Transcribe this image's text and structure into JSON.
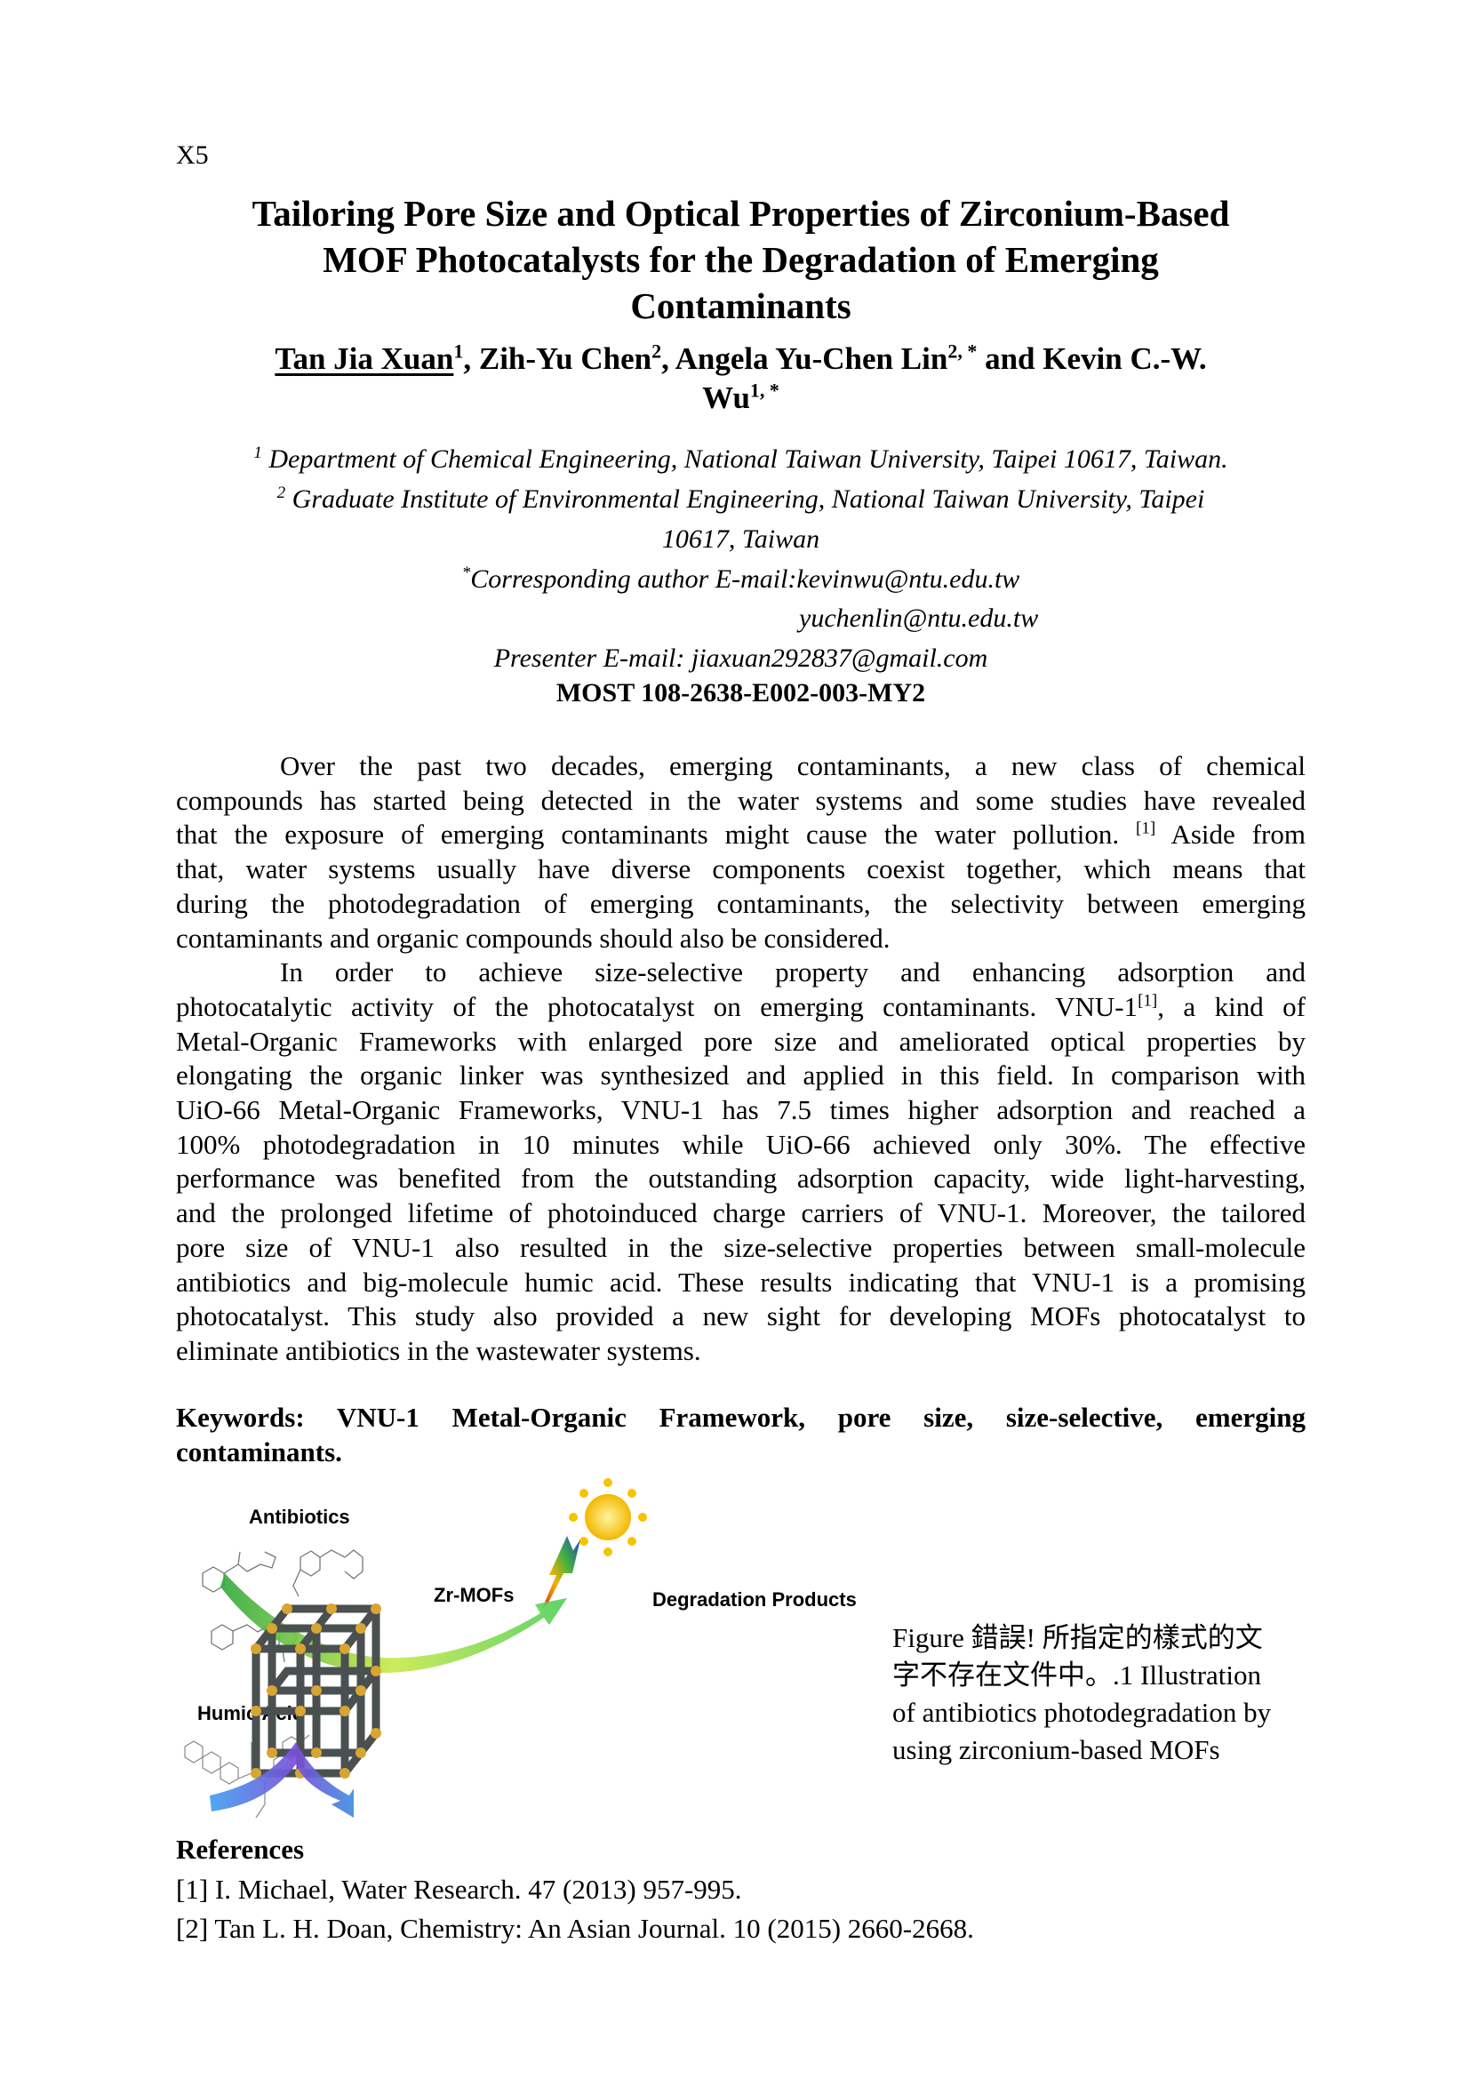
{
  "page_label": "X5",
  "title_lines": [
    "Tailoring Pore Size and Optical Properties of Zirconium-Based",
    "MOF Photocatalysts for the Degradation of Emerging",
    "Contaminants"
  ],
  "authors": {
    "a1": "Tan Jia Xuan",
    "a1_sup": "1",
    "a2": ", Zih-Yu Chen",
    "a2_sup": "2",
    "a3": ", Angela Yu-Chen Lin",
    "a3_sup": "2, *",
    "a4": " and Kevin C.-W.",
    "a4b": "Wu",
    "a4_sup": "1, *"
  },
  "affiliations": {
    "aff1_sup": "1",
    "aff1": " Department of Chemical Engineering, National Taiwan University, Taipei 10617, Taiwan.",
    "aff2_sup": "2",
    "aff2a": " Graduate Institute of Environmental Engineering, National Taiwan University, Taipei",
    "aff2b": "10617, Taiwan",
    "corr_sup": "*",
    "corr": "Corresponding author E-mail:kevinwu@ntu.edu.tw",
    "corr2": "yuchenlin@ntu.edu.tw",
    "presenter": "Presenter E-mail: jiaxuan292837@gmail.com"
  },
  "grant": "MOST 108-2638-E002-003-MY2",
  "body_paragraphs": [
    [
      "Over the past two decades, emerging contaminants, a new class of chemical",
      "compounds has started being detected in the water systems and some studies have revealed",
      [
        "that the exposure of emerging contaminants might cause the water pollution. ",
        "[1]",
        " Aside from"
      ],
      "that, water systems usually have diverse components coexist together, which means that",
      "during the photodegradation of emerging contaminants, the selectivity between emerging",
      "contaminants and organic compounds should also be considered."
    ],
    [
      "In order to achieve size-selective property and enhancing adsorption and",
      [
        "photocatalytic activity of the photocatalyst on emerging contaminants. VNU-1",
        "[1]",
        ", a kind of"
      ],
      "Metal-Organic Frameworks with enlarged pore size and ameliorated optical properties by",
      "elongating the organic linker was synthesized and applied in this field. In comparison with",
      "UiO-66 Metal-Organic Frameworks, VNU-1 has 7.5 times higher adsorption and reached a",
      "100% photodegradation in 10 minutes while UiO-66 achieved only 30%. The effective",
      "performance was benefited from the outstanding adsorption capacity, wide light-harvesting,",
      "and the prolonged lifetime of photoinduced charge carriers of VNU-1. Moreover, the tailored",
      "pore size of VNU-1 also resulted in the size-selective properties between small-molecule",
      "antibiotics and big-molecule humic acid. These results indicating that VNU-1 is a promising",
      "photocatalyst. This study also provided a new sight for developing MOFs photocatalyst to",
      "eliminate antibiotics in the wastewater systems."
    ]
  ],
  "keywords": {
    "line1": "Keywords: VNU-1 Metal-Organic Framework, pore size, size-selective, emerging",
    "line2": "contaminants."
  },
  "figure": {
    "labels": {
      "antibiotics": "Antibiotics",
      "zr_mofs": "Zr-MOFs",
      "degradation_products": "Degradation Products",
      "humic_acid": "Humic Acid"
    },
    "colors": {
      "sun": "#f7c300",
      "cube_rod": "#4a5050",
      "node": "#d9a531",
      "green_arrow": "#5ec23a",
      "blue_arrow": "#3d8fe0"
    },
    "caption_lines": [
      "Figure 錯誤! 所指定的樣式的文",
      "字不存在文件中。.1 Illustration",
      "of antibiotics photodegradation by",
      "using zirconium-based MOFs"
    ]
  },
  "references": {
    "title": "References",
    "items": [
      "[1] I. Michael, Water Research. 47 (2013) 957-995.",
      "[2] Tan L. H. Doan, Chemistry: An Asian Journal. 10 (2015) 2660-2668."
    ]
  }
}
